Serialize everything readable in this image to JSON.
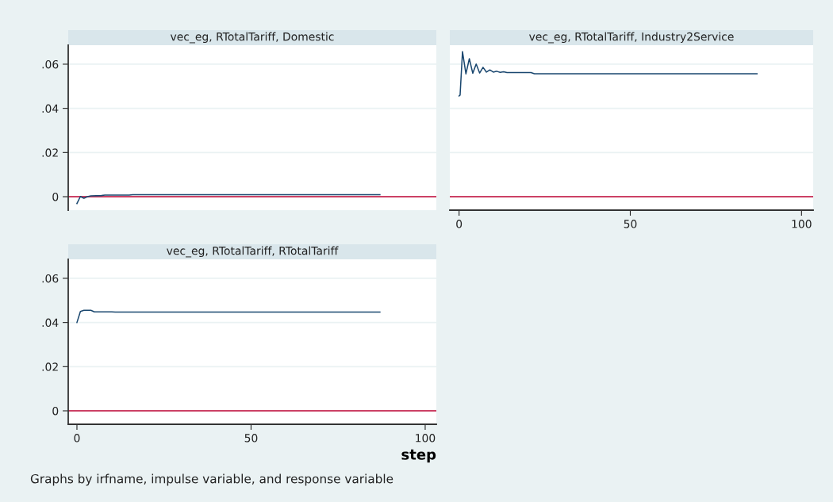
{
  "chart_data": [
    {
      "type": "line",
      "title": "vec_eg, RTotalTariff, Domestic",
      "xlim": [
        -2.5,
        103.2
      ],
      "ylim": [
        -0.0061,
        0.0686
      ],
      "yticks": [
        0,
        {
          "value": 0.02,
          "label": ".02"
        },
        {
          "value": 0.04,
          "label": ".04"
        },
        {
          "value": 0.06,
          "label": ".06"
        }
      ],
      "tick_labels": "y",
      "grid": "y",
      "ref_lines": [
        {
          "axis": "y",
          "value": 0,
          "color": "#c10534"
        }
      ],
      "series": [
        {
          "color": "#1a476f",
          "x": [
            0,
            1,
            2,
            3,
            4,
            7,
            8,
            15,
            16,
            87
          ],
          "values": [
            -0.0031,
            0.0001,
            -0.0007,
            0.0,
            0.0004,
            0.0005,
            0.0007,
            0.0007,
            0.0009,
            0.0009
          ]
        }
      ]
    },
    {
      "type": "line",
      "title": "vec_eg, RTotalTariff, Industry2Service",
      "xlim": [
        -2.7,
        103.4
      ],
      "xticks": [
        0,
        50,
        100
      ],
      "ylim": [
        -0.0061,
        0.0686
      ],
      "yticks": [
        0,
        0.02,
        0.04,
        0.06
      ],
      "tick_labels": "x",
      "grid": "y",
      "ref_lines": [
        {
          "axis": "y",
          "value": 0,
          "color": "#c10534"
        }
      ],
      "series": [
        {
          "color": "#1a476f",
          "x": [
            0,
            0.3,
            1,
            2,
            3,
            4,
            5,
            6,
            7,
            8,
            9,
            10,
            11,
            12,
            13,
            14,
            21,
            22,
            87
          ],
          "values": [
            0.0456,
            0.046,
            0.0657,
            0.0556,
            0.0625,
            0.0559,
            0.0601,
            0.056,
            0.0586,
            0.0564,
            0.0574,
            0.0564,
            0.0568,
            0.0563,
            0.0566,
            0.0562,
            0.0562,
            0.0557,
            0.0557
          ]
        }
      ]
    },
    {
      "type": "line",
      "title": "vec_eg, RTotalTariff, RTotalTariff",
      "xlabel": "step",
      "xlim": [
        -2.5,
        103.2
      ],
      "xticks": [
        0,
        50,
        100
      ],
      "ylim": [
        -0.0061,
        0.0686
      ],
      "yticks": [
        0,
        {
          "value": 0.02,
          "label": ".02"
        },
        {
          "value": 0.04,
          "label": ".04"
        },
        {
          "value": 0.06,
          "label": ".06"
        }
      ],
      "grid": "y",
      "ref_lines": [
        {
          "axis": "y",
          "value": 0,
          "color": "#c10534"
        }
      ],
      "annotations": [
        "Graphs by irfname, impulse variable, and response variable"
      ],
      "series": [
        {
          "color": "#1a476f",
          "x": [
            0,
            1,
            2,
            4,
            5,
            10,
            11,
            87
          ],
          "values": [
            0.04,
            0.045,
            0.0455,
            0.0455,
            0.0448,
            0.0448,
            0.0447,
            0.0447
          ]
        }
      ]
    }
  ]
}
